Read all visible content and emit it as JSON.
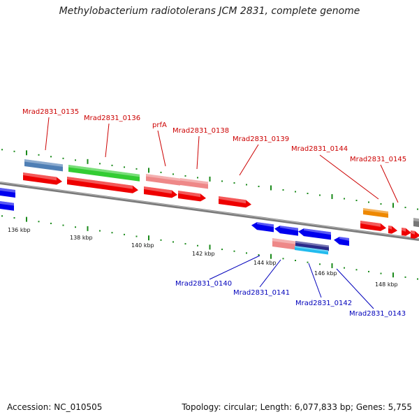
{
  "title": "Methylobacterium radiotolerans JCM 2831, complete genome",
  "footer": {
    "accession": "Accession: NC_010505",
    "topology": "Topology: circular; Length: 6,077,833 bp; Genes: 5,755"
  },
  "kbp_labels": [
    "136 kbp",
    "138 kbp",
    "140 kbp",
    "142 kbp",
    "144 kbp",
    "146 kbp",
    "148 kbp"
  ],
  "gene_labels_top": [
    "Mrad2831_0135",
    "Mrad2831_0136",
    "prfA",
    "Mrad2831_0138",
    "Mrad2831_0139",
    "Mrad2831_0144",
    "Mrad2831_0145"
  ],
  "gene_labels_bottom": [
    "Mrad2831_0140",
    "Mrad2831_0141",
    "Mrad2831_0142",
    "Mrad2831_0143"
  ],
  "colors": {
    "top_label": "#cc0000",
    "bottom_label": "#0000bb",
    "backbone": "#808080",
    "tick": "#1a8a1a",
    "red_feature": "#ee0000",
    "blue_feature": "#0000ee",
    "green_feature": "#33cc33",
    "steel_feature": "#4f7fb5",
    "pink_feature": "#ee8888",
    "orange_feature": "#ee8800",
    "navy_feature": "#2a2a8a",
    "cyan_feature": "#22bbee",
    "gray_feature": "#777777"
  }
}
